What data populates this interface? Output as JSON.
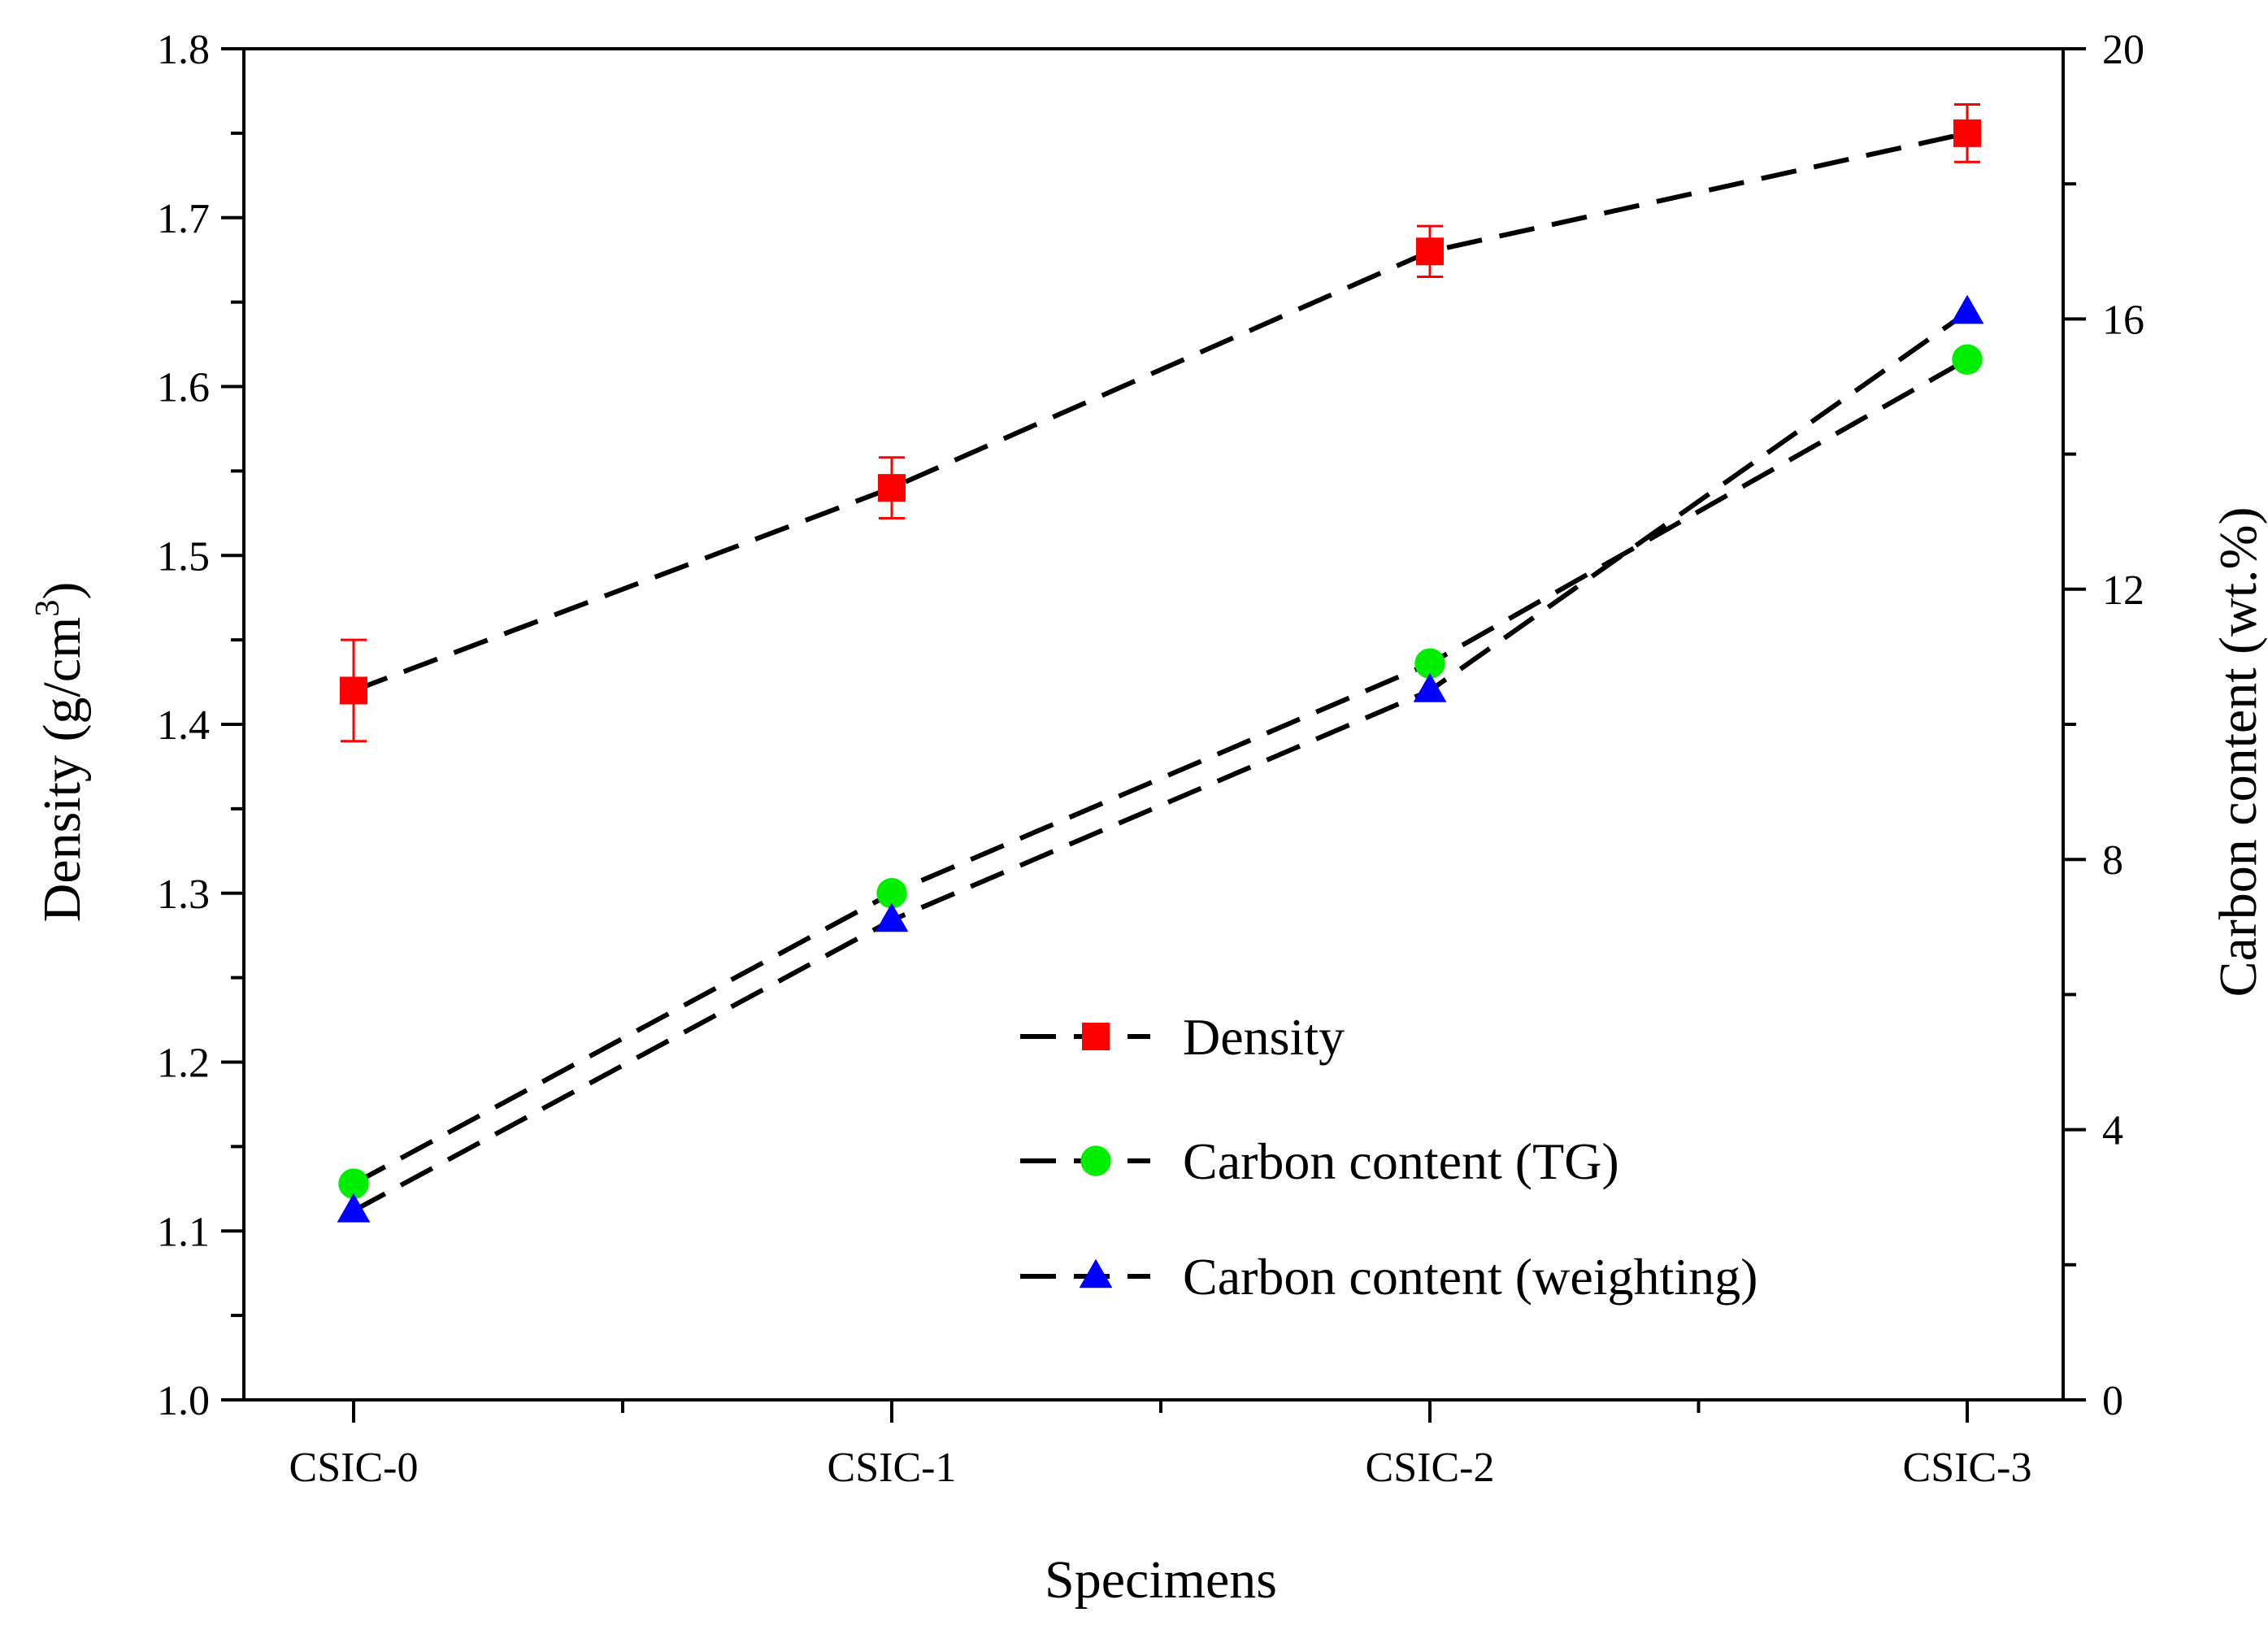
{
  "chart_data": {
    "type": "line",
    "categories": [
      "CSIC-0",
      "CSIC-1",
      "CSIC-2",
      "CSIC-3"
    ],
    "xlabel": "Specimens",
    "ylabel_left": "Density (g/cm",
    "ylabel_left_sup": "3",
    "ylabel_left_close": ")",
    "ylabel_right": "Carbon content (wt.%)",
    "ylim_left": [
      1.0,
      1.8
    ],
    "yticks_left": [
      "1.0",
      "1.1",
      "1.2",
      "1.3",
      "1.4",
      "1.5",
      "1.6",
      "1.7",
      "1.8"
    ],
    "ylim_right": [
      0,
      20
    ],
    "yticks_right": [
      "0",
      "4",
      "8",
      "12",
      "16",
      "20"
    ],
    "grid": false,
    "legend_position": "lower-right",
    "series": [
      {
        "name": "Density",
        "axis": "left",
        "marker": "square",
        "color": "#ff0000",
        "values": [
          1.42,
          1.54,
          1.68,
          1.75
        ],
        "error": [
          0.03,
          0.018,
          0.015,
          0.017
        ]
      },
      {
        "name": "Carbon content (TG)",
        "axis": "right",
        "marker": "circle",
        "color": "#00ee00",
        "values": [
          3.2,
          7.5,
          10.9,
          15.4
        ]
      },
      {
        "name": "Carbon content (weighting)",
        "axis": "right",
        "marker": "triangle",
        "color": "#0000ff",
        "values": [
          2.8,
          7.1,
          10.5,
          16.1
        ]
      }
    ]
  }
}
